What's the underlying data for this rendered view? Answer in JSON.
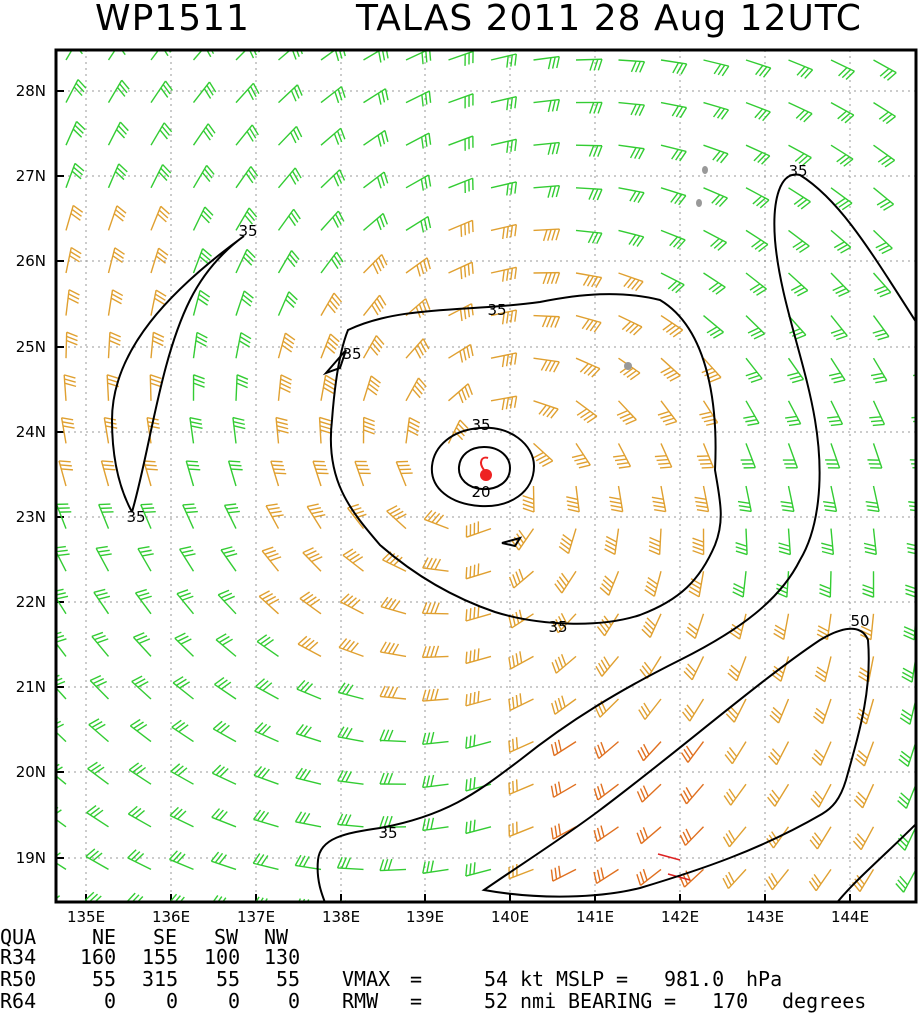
{
  "title": {
    "storm_id": "WP1511",
    "storm_info": "TALAS 2011 28 Aug 12UTC"
  },
  "axes": {
    "lon_labels": [
      "135E",
      "136E",
      "137E",
      "138E",
      "139E",
      "140E",
      "141E",
      "142E",
      "143E",
      "144E"
    ],
    "lat_labels": [
      "28N",
      "27N",
      "26N",
      "25N",
      "24N",
      "23N",
      "22N",
      "21N",
      "20N",
      "19N"
    ]
  },
  "contour_labels": [
    "35",
    "35",
    "35",
    "35",
    "35",
    "35",
    "35",
    "20",
    "35",
    "50"
  ],
  "quadrants": {
    "header": [
      "QUA",
      "NE",
      "SE",
      "SW",
      "NW"
    ],
    "rows": [
      {
        "label": "R34",
        "values": [
          "160",
          "155",
          "100",
          "130"
        ]
      },
      {
        "label": "R50",
        "values": [
          "55",
          "315",
          "55",
          "55"
        ]
      },
      {
        "label": "R64",
        "values": [
          "0",
          "0",
          "0",
          "0"
        ]
      }
    ]
  },
  "metrics": {
    "vmax_label": "VMAX",
    "vmax_value": "54",
    "vmax_unit": "kt",
    "mslp_label": "MSLP",
    "mslp_value": "981.0",
    "mslp_unit": "hPa",
    "rmw_label": "RMW",
    "rmw_value": "52",
    "rmw_unit": "nmi",
    "bearing_label": "BEARING",
    "bearing_value": "170",
    "bearing_unit": "degrees"
  },
  "colors": {
    "barb_low": "#33cc33",
    "barb_mid": "#e0a030",
    "barb_high": "#e07020",
    "barb_max": "#dd2222",
    "center": "#ee2222",
    "island": "#999999",
    "contour": "#000000"
  }
}
